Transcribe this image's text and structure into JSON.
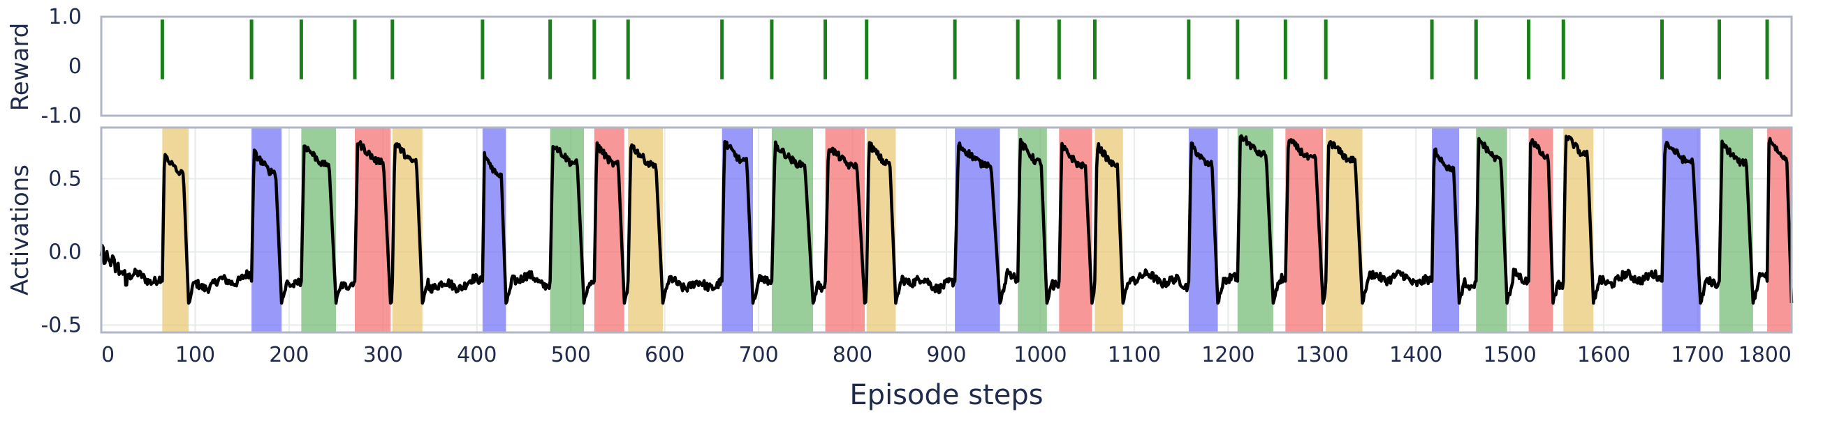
{
  "chart_data": [
    {
      "type": "bar",
      "panel": "reward",
      "ylabel": "Reward",
      "ylim": [
        -1.0,
        1.0
      ],
      "yticks": [
        1.0,
        0,
        -1.0
      ],
      "ytick_labels": [
        "1.0",
        "0",
        "-1.0"
      ],
      "xlim": [
        0,
        1800
      ],
      "grid": false,
      "bar_color": "#1a7f1a",
      "bar_range": [
        0.3,
        1.0
      ],
      "reward_steps": [
        65,
        160,
        213,
        270,
        310,
        406,
        478,
        525,
        561,
        661,
        714,
        771,
        815,
        909,
        976,
        1020,
        1058,
        1158,
        1210,
        1261,
        1304,
        1417,
        1464,
        1520,
        1557,
        1662,
        1723,
        1774
      ]
    },
    {
      "type": "line",
      "panel": "activations",
      "ylabel": "Activations",
      "xlabel": "Episode steps",
      "xlim": [
        0,
        1800
      ],
      "ylim": [
        -0.55,
        0.85
      ],
      "xticks": [
        0,
        100,
        200,
        300,
        400,
        500,
        600,
        700,
        800,
        900,
        1000,
        1100,
        1200,
        1300,
        1400,
        1500,
        1600,
        1700,
        1800
      ],
      "xtick_labels": [
        "0",
        "100",
        "200",
        "300",
        "400",
        "500",
        "600",
        "700",
        "800",
        "900",
        "1000",
        "1100",
        "1200",
        "1300",
        "1400",
        "1500",
        "1600",
        "1700",
        "1800"
      ],
      "yticks": [
        0.5,
        0.0,
        -0.5
      ],
      "ytick_labels": [
        "0.5",
        "0.0",
        "-0.5"
      ],
      "grid": true,
      "line_color": "#000000",
      "baseline": -0.2,
      "start_value": 0.0,
      "colors": {
        "yellow": "#e8c66e",
        "blue": "#6e6ef6",
        "green": "#6db86d",
        "red": "#f56b6b"
      },
      "regions": [
        {
          "start": 65,
          "end": 93,
          "color": "yellow",
          "peak": 0.67
        },
        {
          "start": 160,
          "end": 192,
          "color": "blue",
          "peak": 0.68
        },
        {
          "start": 213,
          "end": 250,
          "color": "green",
          "peak": 0.73
        },
        {
          "start": 270,
          "end": 308,
          "color": "red",
          "peak": 0.75
        },
        {
          "start": 310,
          "end": 342,
          "color": "yellow",
          "peak": 0.75
        },
        {
          "start": 406,
          "end": 431,
          "color": "blue",
          "peak": 0.66
        },
        {
          "start": 478,
          "end": 514,
          "color": "green",
          "peak": 0.74
        },
        {
          "start": 525,
          "end": 557,
          "color": "red",
          "peak": 0.73
        },
        {
          "start": 561,
          "end": 598,
          "color": "yellow",
          "peak": 0.73
        },
        {
          "start": 661,
          "end": 694,
          "color": "blue",
          "peak": 0.75
        },
        {
          "start": 714,
          "end": 758,
          "color": "green",
          "peak": 0.73
        },
        {
          "start": 771,
          "end": 813,
          "color": "red",
          "peak": 0.72
        },
        {
          "start": 815,
          "end": 846,
          "color": "yellow",
          "peak": 0.74
        },
        {
          "start": 909,
          "end": 957,
          "color": "blue",
          "peak": 0.73
        },
        {
          "start": 976,
          "end": 1007,
          "color": "green",
          "peak": 0.75
        },
        {
          "start": 1020,
          "end": 1055,
          "color": "red",
          "peak": 0.72
        },
        {
          "start": 1058,
          "end": 1088,
          "color": "yellow",
          "peak": 0.73
        },
        {
          "start": 1158,
          "end": 1189,
          "color": "blue",
          "peak": 0.73
        },
        {
          "start": 1210,
          "end": 1248,
          "color": "green",
          "peak": 0.8
        },
        {
          "start": 1261,
          "end": 1301,
          "color": "red",
          "peak": 0.77
        },
        {
          "start": 1304,
          "end": 1343,
          "color": "yellow",
          "peak": 0.76
        },
        {
          "start": 1417,
          "end": 1446,
          "color": "blue",
          "peak": 0.7
        },
        {
          "start": 1464,
          "end": 1497,
          "color": "green",
          "peak": 0.77
        },
        {
          "start": 1520,
          "end": 1546,
          "color": "red",
          "peak": 0.78
        },
        {
          "start": 1557,
          "end": 1589,
          "color": "yellow",
          "peak": 0.8
        },
        {
          "start": 1662,
          "end": 1703,
          "color": "blue",
          "peak": 0.75
        },
        {
          "start": 1723,
          "end": 1759,
          "color": "green",
          "peak": 0.74
        },
        {
          "start": 1774,
          "end": 1800,
          "color": "red",
          "peak": 0.78
        }
      ]
    }
  ]
}
